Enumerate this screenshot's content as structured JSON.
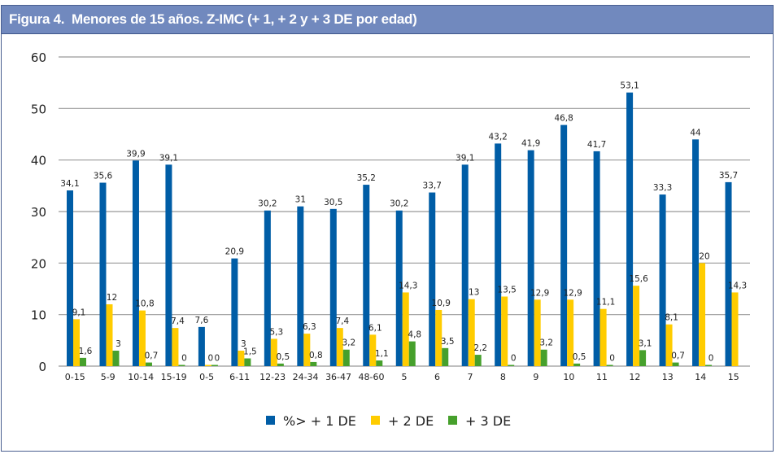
{
  "title": "Figura 4.  Menores de 15 años. Z-IMC (+ 1, + 2 y + 3 DE por edad)",
  "chart_data": {
    "type": "bar",
    "title": "Figura 4.  Menores de 15 años. Z-IMC (+ 1, + 2 y + 3 DE por edad)",
    "xlabel": "",
    "ylabel": "",
    "ylim": [
      0,
      60
    ],
    "yticks": [
      0,
      10,
      20,
      30,
      40,
      50,
      60
    ],
    "grid": true,
    "legend_position": "bottom",
    "categories": [
      "0-15",
      "5-9",
      "10-14",
      "15-19",
      "0-5",
      "6-11",
      "12-23",
      "24-34",
      "36-47",
      "48-60",
      "5",
      "6",
      "7",
      "8",
      "9",
      "10",
      "11",
      "12",
      "13",
      "14",
      "15"
    ],
    "series": [
      {
        "name": "%> + 1 DE",
        "color": "#005da6",
        "values": [
          34.1,
          35.6,
          39.9,
          39.1,
          7.6,
          20.9,
          30.2,
          31,
          30.5,
          35.2,
          30.2,
          33.7,
          39.1,
          43.2,
          41.9,
          46.8,
          41.7,
          53.1,
          33.3,
          44,
          35.7
        ],
        "labels": [
          "34,1",
          "35,6",
          "39,9",
          "39,1",
          "7,6",
          "20,9",
          "30,2",
          "31",
          "30,5",
          "35,2",
          "30,2",
          "33,7",
          "39,1",
          "43,2",
          "41,9",
          "46,8",
          "41,7",
          "53,1",
          "33,3",
          "44",
          "35,7"
        ]
      },
      {
        "name": "+ 2 DE",
        "color": "#ffcc00",
        "values": [
          9.1,
          12,
          10.8,
          7.4,
          0,
          3,
          5.3,
          6.3,
          7.4,
          6.1,
          14.3,
          10.9,
          13,
          13.5,
          12.9,
          12.9,
          11.1,
          15.6,
          8.1,
          20,
          14.3
        ],
        "labels": [
          "9,1",
          "12",
          "10,8",
          "7,4",
          "0",
          "3",
          "5,3",
          "6,3",
          "7,4",
          "6,1",
          "14,3",
          "10,9",
          "13",
          "13,5",
          "12,9",
          "12,9",
          "11,1",
          "15,6",
          "8,1",
          "20",
          "14,3"
        ]
      },
      {
        "name": "+ 3 DE",
        "color": "#46a02c",
        "values": [
          1.6,
          3,
          0.7,
          0,
          0,
          1.5,
          0.5,
          0.8,
          3.2,
          1.1,
          4.8,
          3.5,
          2.2,
          0,
          3.2,
          0.5,
          0,
          3.1,
          0.7,
          0,
          null
        ],
        "labels": [
          "1,6",
          "3",
          "0,7",
          "0",
          "0",
          "1,5",
          "0,5",
          "0,8",
          "3,2",
          "1,1",
          "4,8",
          "3,5",
          "2,2",
          "0",
          "3,2",
          "0,5",
          "0",
          "3,1",
          "0,7",
          "0",
          ""
        ]
      }
    ]
  }
}
